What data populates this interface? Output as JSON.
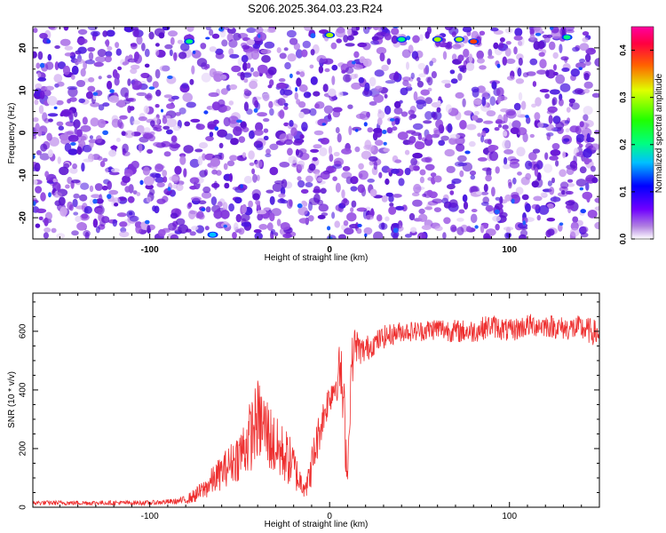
{
  "title": "S206.2025.364.03.23.R24",
  "colors": {
    "snr_line": "#ee3030",
    "axis": "#000000",
    "spectrogram_background": "#ffffff"
  },
  "chart_data": [
    {
      "type": "heatmap",
      "title": "S206.2025.364.03.23.R24",
      "xlabel": "Height of straight line (km)",
      "ylabel": "Frequency (Hz)",
      "xlim": [
        -165,
        150
      ],
      "ylim": [
        -25,
        25
      ],
      "x_ticks": [
        -100,
        0,
        100
      ],
      "y_ticks": [
        -20,
        -10,
        0,
        10,
        20
      ],
      "colorbar": {
        "label": "Normalized spectral amplitude",
        "range": [
          0.0,
          0.45
        ],
        "ticks": [
          0.0,
          0.1,
          0.2,
          0.3,
          0.4
        ],
        "colormap": [
          "#ffffff",
          "#8a2be2",
          "#0000ff",
          "#00ffff",
          "#00ff00",
          "#ffff00",
          "#ff0000",
          "#ff0080"
        ]
      },
      "hotspots": [
        {
          "x": 0,
          "y": 23,
          "value": 0.28
        },
        {
          "x": 60,
          "y": 22,
          "value": 0.3
        },
        {
          "x": 72,
          "y": 22,
          "value": 0.33
        },
        {
          "x": 80,
          "y": 21.5,
          "value": 0.42
        },
        {
          "x": -78,
          "y": 21.5,
          "value": 0.25
        },
        {
          "x": 40,
          "y": 22,
          "value": 0.2
        },
        {
          "x": 132,
          "y": 22.5,
          "value": 0.2
        },
        {
          "x": -65,
          "y": -24,
          "value": 0.15
        }
      ],
      "grid": false
    },
    {
      "type": "line",
      "xlabel": "Height of straight line (km)",
      "ylabel": "SNR (10 * v/v)",
      "xlim": [
        -165,
        150
      ],
      "ylim": [
        0,
        730
      ],
      "x_ticks": [
        -100,
        0,
        100
      ],
      "y_ticks": [
        0,
        200,
        400,
        600
      ],
      "series": [
        {
          "x": [
            -165,
            -140,
            -120,
            -100,
            -85,
            -80,
            -75,
            -70,
            -65,
            -60,
            -55,
            -50,
            -45,
            -40,
            -35,
            -30,
            -25,
            -20,
            -17,
            -12,
            -8,
            -4,
            0,
            4,
            6,
            8,
            10,
            12,
            14,
            18,
            25,
            30,
            40,
            50,
            60,
            70,
            80,
            90,
            100,
            110,
            120,
            130,
            140,
            150
          ],
          "y": [
            15,
            15,
            15,
            15,
            20,
            25,
            40,
            60,
            90,
            120,
            150,
            180,
            230,
            300,
            260,
            200,
            180,
            140,
            90,
            80,
            200,
            300,
            380,
            430,
            480,
            300,
            110,
            470,
            560,
            530,
            560,
            580,
            600,
            600,
            610,
            600,
            600,
            620,
            600,
            620,
            620,
            610,
            610,
            590
          ],
          "spread": [
            8,
            8,
            8,
            8,
            10,
            15,
            25,
            35,
            50,
            60,
            70,
            90,
            120,
            140,
            130,
            110,
            100,
            80,
            50,
            50,
            80,
            60,
            60,
            70,
            100,
            150,
            30,
            100,
            60,
            50,
            40,
            40,
            35,
            35,
            40,
            40,
            40,
            40,
            40,
            40,
            40,
            40,
            45,
            45
          ]
        }
      ],
      "grid": false
    }
  ]
}
